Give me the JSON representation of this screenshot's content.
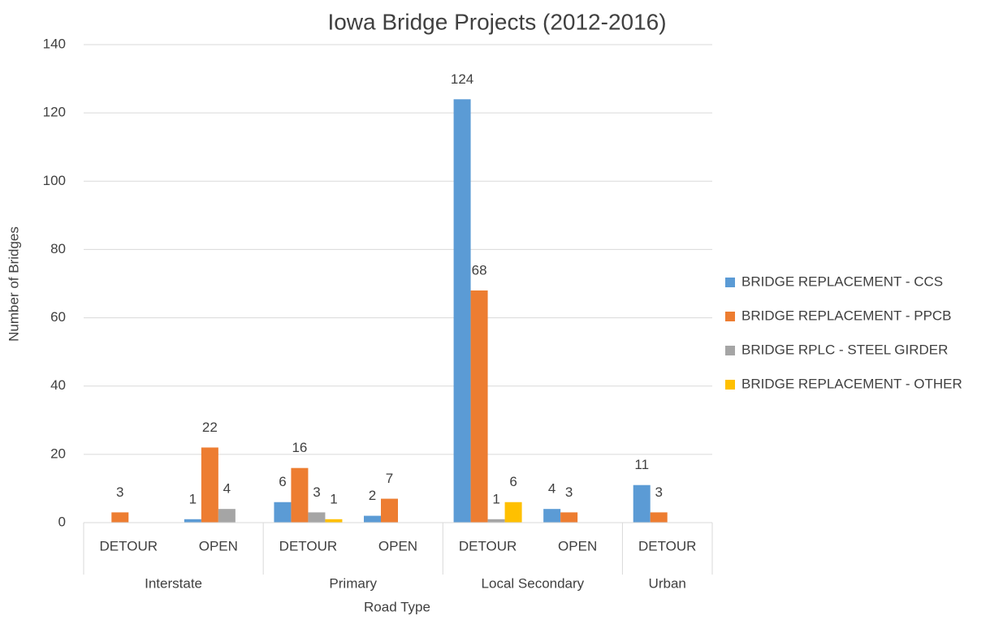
{
  "chart_data": {
    "type": "bar",
    "title": "Iowa Bridge Projects (2012-2016)",
    "x_label": "Road Type",
    "y_label": "Number of Bridges",
    "category_groups": [
      {
        "name": "Interstate",
        "categories": [
          "DETOUR",
          "OPEN"
        ]
      },
      {
        "name": "Primary",
        "categories": [
          "DETOUR",
          "OPEN"
        ]
      },
      {
        "name": "Local Secondary",
        "categories": [
          "DETOUR",
          "OPEN"
        ]
      },
      {
        "name": "Urban",
        "categories": [
          "DETOUR"
        ]
      }
    ],
    "series": [
      {
        "name": "BRIDGE REPLACEMENT - CCS",
        "color": "#5b9bd5",
        "values": [
          null,
          1,
          6,
          2,
          124,
          4,
          11
        ]
      },
      {
        "name": "BRIDGE REPLACEMENT - PPCB",
        "color": "#ed7d31",
        "values": [
          3,
          22,
          16,
          7,
          68,
          3,
          3
        ]
      },
      {
        "name": "BRIDGE RPLC - STEEL GIRDER",
        "color": "#a5a5a5",
        "values": [
          null,
          4,
          3,
          null,
          1,
          null,
          null
        ]
      },
      {
        "name": "BRIDGE REPLACEMENT - OTHER",
        "color": "#ffc000",
        "values": [
          null,
          null,
          1,
          null,
          6,
          null,
          null
        ]
      }
    ],
    "ylim": [
      0,
      140
    ],
    "yticks": [
      0,
      20,
      40,
      60,
      80,
      100,
      120,
      140
    ],
    "grid": true,
    "legend": "right"
  }
}
